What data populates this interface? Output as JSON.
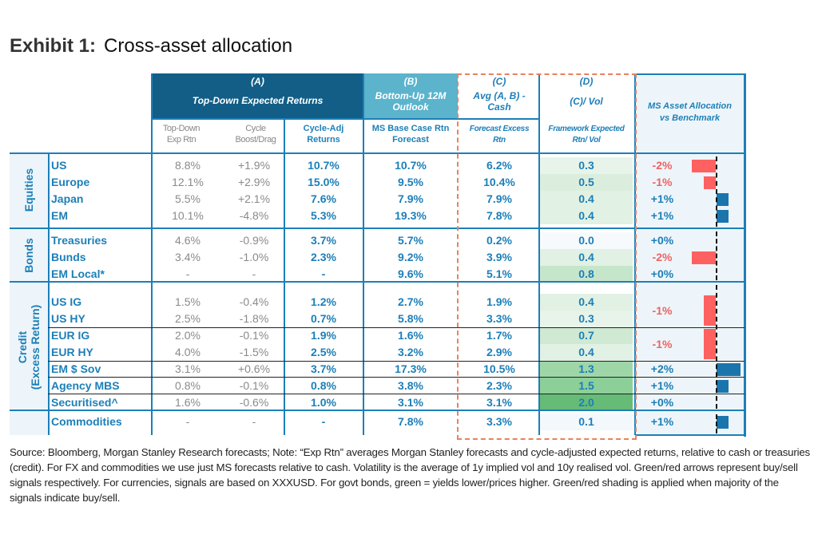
{
  "title": {
    "label": "Exhibit 1:",
    "text": "Cross-asset allocation"
  },
  "headers": {
    "a_letter": "(A)",
    "a_title": "Top-Down Expected Returns",
    "b_letter": "(B)",
    "b_title_1": "Bottom-Up 12M",
    "b_title_2": "Outlook",
    "c_letter": "(C)",
    "c_title_1": "Avg (A, B) -",
    "c_title_2": "Cash",
    "d_letter": "(D)",
    "d_title": "(C)/ Vol",
    "alloc_1": "MS Asset Allocation",
    "alloc_2": "vs Benchmark"
  },
  "subheaders": {
    "td_1": "Top-Down",
    "td_2": "Exp Rtn",
    "cy_1": "Cycle",
    "cy_2": "Boost/Drag",
    "ca_1": "Cycle-Adj",
    "ca_2": "Returns",
    "ms_1": "MS Base Case Rtn",
    "ms_2": "Forecast",
    "fe_1": "Forecast Excess",
    "fe_2": "Rtn",
    "fw_1": "Framework Expected",
    "fw_2": "Rtn/ Vol"
  },
  "categories": {
    "equities": "Equities",
    "bonds": "Bonds",
    "credit_1": "Credit",
    "credit_2": "(Excess Return)"
  },
  "rows": [
    {
      "name": "US",
      "td": "8.8%",
      "cycle": "+1.9%",
      "adj": "10.7%",
      "ms": "10.7%",
      "fe": "6.2%",
      "vol": "0.3",
      "vol_num": 0.3
    },
    {
      "name": "Europe",
      "td": "12.1%",
      "cycle": "+2.9%",
      "adj": "15.0%",
      "ms": "9.5%",
      "fe": "10.4%",
      "vol": "0.5",
      "vol_num": 0.5
    },
    {
      "name": "Japan",
      "td": "5.5%",
      "cycle": "+2.1%",
      "adj": "7.6%",
      "ms": "7.9%",
      "fe": "7.9%",
      "vol": "0.4",
      "vol_num": 0.4
    },
    {
      "name": "EM",
      "td": "10.1%",
      "cycle": "-4.8%",
      "adj": "5.3%",
      "ms": "19.3%",
      "fe": "7.8%",
      "vol": "0.4",
      "vol_num": 0.4
    },
    {
      "name": "Treasuries",
      "td": "4.6%",
      "cycle": "-0.9%",
      "adj": "3.7%",
      "ms": "5.7%",
      "fe": "0.2%",
      "vol": "0.0",
      "vol_num": 0.0
    },
    {
      "name": "Bunds",
      "td": "3.4%",
      "cycle": "-1.0%",
      "adj": "2.3%",
      "ms": "9.2%",
      "fe": "3.9%",
      "vol": "0.4",
      "vol_num": 0.4
    },
    {
      "name": "EM Local*",
      "td": "-",
      "cycle": "-",
      "adj": "-",
      "ms": "9.6%",
      "fe": "5.1%",
      "vol": "0.8",
      "vol_num": 0.8
    },
    {
      "name": "US IG",
      "td": "1.5%",
      "cycle": "-0.4%",
      "adj": "1.2%",
      "ms": "2.7%",
      "fe": "1.9%",
      "vol": "0.4",
      "vol_num": 0.4
    },
    {
      "name": "US HY",
      "td": "2.5%",
      "cycle": "-1.8%",
      "adj": "0.7%",
      "ms": "5.8%",
      "fe": "3.3%",
      "vol": "0.3",
      "vol_num": 0.3
    },
    {
      "name": "EUR IG",
      "td": "2.0%",
      "cycle": "-0.1%",
      "adj": "1.9%",
      "ms": "1.6%",
      "fe": "1.7%",
      "vol": "0.7",
      "vol_num": 0.7
    },
    {
      "name": "EUR HY",
      "td": "4.0%",
      "cycle": "-1.5%",
      "adj": "2.5%",
      "ms": "3.2%",
      "fe": "2.9%",
      "vol": "0.4",
      "vol_num": 0.4
    },
    {
      "name": "EM $ Sov",
      "td": "3.1%",
      "cycle": "+0.6%",
      "adj": "3.7%",
      "ms": "17.3%",
      "fe": "10.5%",
      "vol": "1.3",
      "vol_num": 1.3
    },
    {
      "name": "Agency MBS",
      "td": "0.8%",
      "cycle": "-0.1%",
      "adj": "0.8%",
      "ms": "3.8%",
      "fe": "2.3%",
      "vol": "1.5",
      "vol_num": 1.5
    },
    {
      "name": "Securitised^",
      "td": "1.6%",
      "cycle": "-0.6%",
      "adj": "1.0%",
      "ms": "3.1%",
      "fe": "3.1%",
      "vol": "2.0",
      "vol_num": 2.0
    },
    {
      "name": "Commodities",
      "td": "-",
      "cycle": "-",
      "adj": "-",
      "ms": "7.8%",
      "fe": "3.3%",
      "vol": "0.1",
      "vol_num": 0.1
    }
  ],
  "allocations": [
    {
      "label": "-2%",
      "value": -2,
      "rows": [
        0
      ]
    },
    {
      "label": "-1%",
      "value": -1,
      "rows": [
        1
      ]
    },
    {
      "label": "+1%",
      "value": 1,
      "rows": [
        2
      ]
    },
    {
      "label": "+1%",
      "value": 1,
      "rows": [
        3
      ]
    },
    {
      "label": "+0%",
      "value": 0,
      "rows": [
        4
      ]
    },
    {
      "label": "-2%",
      "value": -2,
      "rows": [
        5
      ]
    },
    {
      "label": "+0%",
      "value": 0,
      "rows": [
        6
      ]
    },
    {
      "label": "-1%",
      "value": -1,
      "rows": [
        7,
        8
      ]
    },
    {
      "label": "-1%",
      "value": -1,
      "rows": [
        9,
        10
      ]
    },
    {
      "label": "+2%",
      "value": 2,
      "rows": [
        11
      ]
    },
    {
      "label": "+1%",
      "value": 1,
      "rows": [
        12
      ]
    },
    {
      "label": "+0%",
      "value": 0,
      "rows": [
        13
      ]
    },
    {
      "label": "+1%",
      "value": 1,
      "rows": [
        14
      ]
    }
  ],
  "colors": {
    "header_dark": "#125e87",
    "header_light": "#5bb3cc",
    "accent_blue": "#1d7fb8",
    "negative_red": "#f06262",
    "bar_red": "#ff6161",
    "bar_blue": "#1b75ad",
    "dashed_orange": "#e8825f"
  },
  "footnote": "Source: Bloomberg, Morgan Stanley Research forecasts; Note: “Exp Rtn” averages Morgan Stanley forecasts and cycle-adjusted expected returns, relative to cash or treasuries (credit). For FX and commodities we use just MS forecasts relative to cash. Volatility is the average of 1y implied vol and 10y realised vol. Green/red arrows represent buy/sell signals respectively. For currencies, signals are based on XXXUSD. For govt bonds, green = yields lower/prices higher. Green/red shading is applied when majority of the signals indicate buy/sell."
}
